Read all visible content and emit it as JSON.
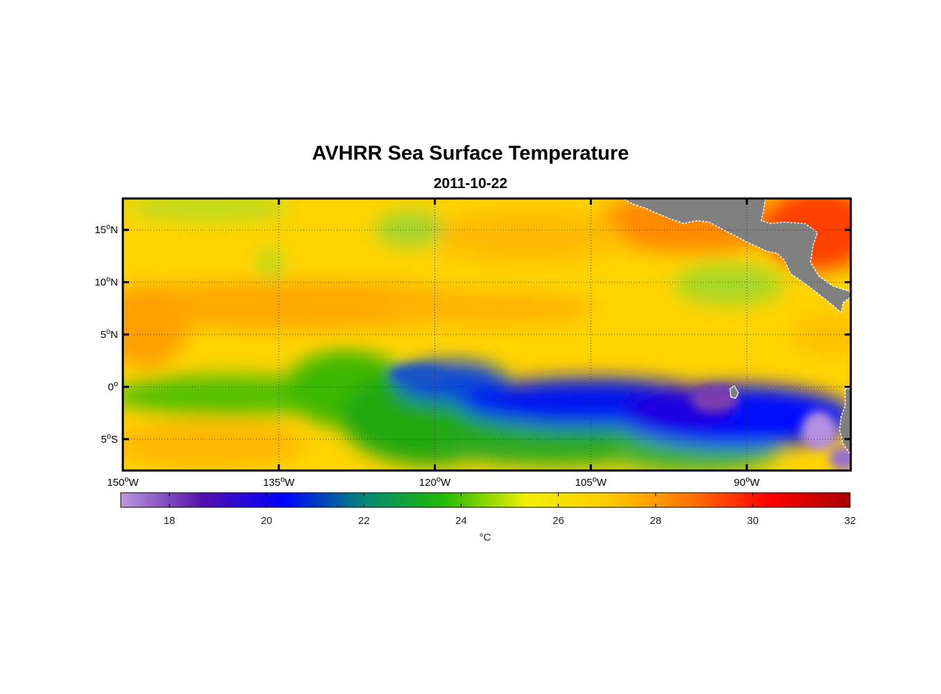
{
  "title": "AVHRR Sea Surface Temperature",
  "date": "2011-10-22",
  "chart_data": {
    "type": "heatmap",
    "variable": "sea surface temperature",
    "x_axis": {
      "ticks": [
        {
          "value": -150,
          "label": "150",
          "sup": "o",
          "suffix": "W"
        },
        {
          "value": -135,
          "label": "135",
          "sup": "o",
          "suffix": "W"
        },
        {
          "value": -120,
          "label": "120",
          "sup": "o",
          "suffix": "W"
        },
        {
          "value": -105,
          "label": "105",
          "sup": "o",
          "suffix": "W"
        },
        {
          "value": -90,
          "label": "90",
          "sup": "o",
          "suffix": "W"
        }
      ],
      "range": [
        -150,
        -80
      ]
    },
    "y_axis": {
      "ticks": [
        {
          "value": 15,
          "label": "15",
          "sup": "o",
          "suffix": "N"
        },
        {
          "value": 10,
          "label": "10",
          "sup": "o",
          "suffix": "N"
        },
        {
          "value": 5,
          "label": "5",
          "sup": "o",
          "suffix": "N"
        },
        {
          "value": 0,
          "label": "0",
          "sup": "o",
          "suffix": ""
        },
        {
          "value": -5,
          "label": "5",
          "sup": "o",
          "suffix": "S"
        }
      ],
      "range": [
        -8,
        18
      ]
    },
    "colorbar": {
      "range": [
        17,
        32
      ],
      "ticks": [
        18,
        20,
        22,
        24,
        26,
        28,
        30,
        32
      ],
      "unit": "°C",
      "colors": [
        "#bb99dd",
        "#5511aa",
        "#0000ff",
        "#008877",
        "#22bb00",
        "#f0f000",
        "#ffcc00",
        "#ff7700",
        "#ff0000",
        "#aa0000"
      ]
    },
    "grid": true,
    "land_color": "#808080",
    "features": [
      {
        "name": "equatorial cold tongue",
        "lat_range": [
          -6,
          2
        ],
        "lon_range": [
          -125,
          -80
        ],
        "value_min": 18,
        "value_max": 22
      },
      {
        "name": "equatorial green band",
        "lat_range": [
          -6,
          2
        ],
        "lon_range": [
          -150,
          -110
        ],
        "value_min": 23,
        "value_max": 25
      },
      {
        "name": "warm band near 8N",
        "lat_range": [
          5,
          11
        ],
        "lon_range": [
          -150,
          -100
        ],
        "value_min": 27,
        "value_max": 28
      },
      {
        "name": "warm pool off Central America",
        "lat_range": [
          10,
          18
        ],
        "lon_range": [
          -105,
          -80
        ],
        "value_min": 28,
        "value_max": 31
      }
    ]
  }
}
